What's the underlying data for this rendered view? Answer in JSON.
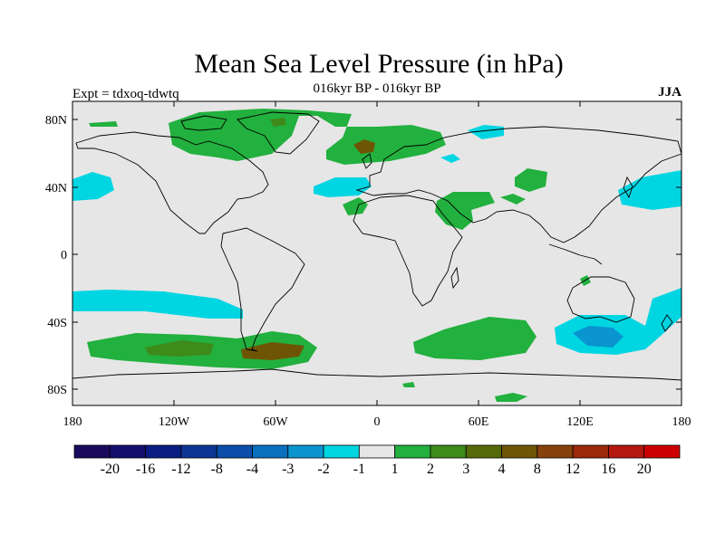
{
  "title": "Mean Sea Level Pressure (in hPa)",
  "left_label": "Expt = tdxoq-tdwtq",
  "center_label": "016kyr BP - 016kyr BP",
  "right_label": "JJA",
  "lat_labels": [
    "80N",
    "40N",
    "0",
    "40S",
    "80S"
  ],
  "lon_labels": [
    "180",
    "120W",
    "60W",
    "0",
    "60E",
    "120E",
    "180"
  ],
  "colorbar": {
    "colors": [
      "#1a0a5e",
      "#14106e",
      "#0a1d82",
      "#0d3595",
      "#0a4ea9",
      "#0a70be",
      "#0a95cf",
      "#00d5e2",
      "#e6e6e6",
      "#22b03e",
      "#3e8a1a",
      "#566a08",
      "#6e5506",
      "#86420a",
      "#9a2a0a",
      "#b41610",
      "#cc0000"
    ],
    "labels": [
      "-20",
      "-16",
      "-12",
      "-8",
      "-4",
      "-3",
      "-2",
      "-1",
      "1",
      "2",
      "3",
      "4",
      "8",
      "12",
      "16",
      "20"
    ]
  },
  "fill_colors": {
    "background": "#e6e6e6",
    "neg1": "#00d5e2",
    "neg2": "#0a95cf",
    "pos1": "#22b03e",
    "pos2": "#3e8a1a",
    "pos3": "#6e5506"
  }
}
